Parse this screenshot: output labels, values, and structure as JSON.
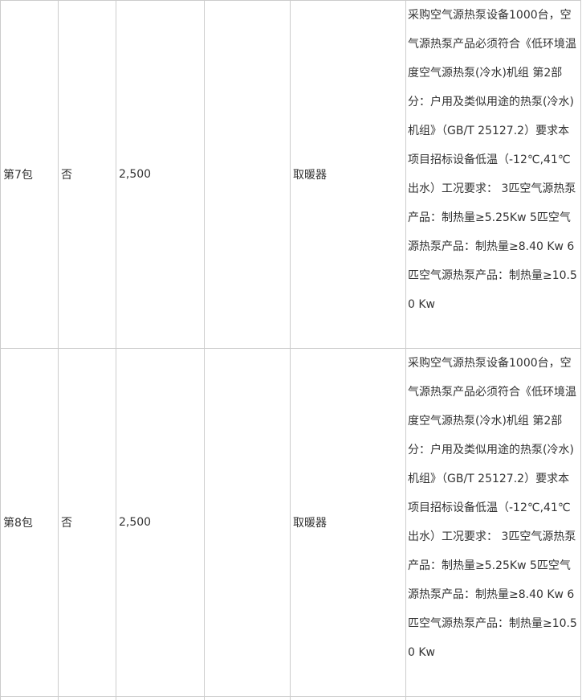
{
  "table": {
    "rows": [
      {
        "package": "第7包",
        "flag": "否",
        "amount": "2,500",
        "use": "取暖器",
        "description": "采购空气源热泵设备1000台，空气源热泵产品必须符合《低环境温度空气源热泵(冷水)机组 第2部分：户用及类似用途的热泵(冷水)机组》（GB/T 25127.2）要求本项目招标设备低温（-12℃,41℃出水）工况要求： 3匹空气源热泵产品：制热量≥5.25Kw 5匹空气源热泵产品：制热量≥8.40 Kw 6匹空气源热泵产品：制热量≥10.50 Kw"
      },
      {
        "package": "第8包",
        "flag": "否",
        "amount": "2,500",
        "use": "取暖器",
        "description": "采购空气源热泵设备1000台，空气源热泵产品必须符合《低环境温度空气源热泵(冷水)机组 第2部分：户用及类似用途的热泵(冷水)机组》（GB/T 25127.2）要求本项目招标设备低温（-12℃,41℃出水）工况要求： 3匹空气源热泵产品：制热量≥5.25Kw 5匹空气源热泵产品：制热量≥8.40 Kw 6匹空气源热泵产品：制热量≥10.50 Kw"
      }
    ]
  }
}
